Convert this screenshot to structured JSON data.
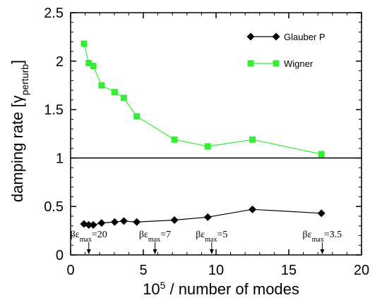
{
  "chart_data": {
    "type": "line",
    "xlabel_base": "10",
    "xlabel_sup": "5",
    "xlabel_rest": " / number of modes",
    "ylabel_main": "damping rate [γ",
    "ylabel_sub": "perturb",
    "ylabel_end": "]",
    "xlim": [
      0,
      20
    ],
    "ylim": [
      0,
      2.5
    ],
    "xticks": [
      0,
      5,
      10,
      15,
      20
    ],
    "xtick_labels": [
      "0",
      "5",
      "10",
      "15",
      "20"
    ],
    "yticks": [
      0,
      0.5,
      1,
      1.5,
      2,
      2.5
    ],
    "ytick_labels": [
      "0",
      "0.5",
      "1",
      "1.5",
      "2",
      "2.5"
    ],
    "reference_line_y": 1,
    "grid": false,
    "legend_position": "top-right",
    "series": [
      {
        "name": "Glauber P",
        "color": "#000000",
        "marker": "diamond",
        "x": [
          0.92,
          1.25,
          1.56,
          2.13,
          3.03,
          3.66,
          4.55,
          7.14,
          9.43,
          12.5,
          17.24
        ],
        "y": [
          0.32,
          0.31,
          0.31,
          0.33,
          0.34,
          0.35,
          0.34,
          0.36,
          0.39,
          0.47,
          0.43
        ]
      },
      {
        "name": "Wigner",
        "color": "#33ee33",
        "marker": "square",
        "x": [
          0.92,
          1.25,
          1.56,
          2.13,
          3.03,
          3.66,
          4.55,
          7.14,
          9.43,
          12.5,
          17.24
        ],
        "y": [
          2.18,
          1.98,
          1.95,
          1.75,
          1.68,
          1.62,
          1.43,
          1.19,
          1.12,
          1.19,
          1.04
        ]
      }
    ],
    "annotations": [
      {
        "sym": "βε",
        "sub": "max",
        "value": "=20",
        "x": 1.25
      },
      {
        "sym": "βε",
        "sub": "max",
        "value": "=7",
        "x": 5.8
      },
      {
        "sym": "βε",
        "sub": "max",
        "value": "=5",
        "x": 9.7
      },
      {
        "sym": "βε",
        "sub": "max",
        "value": "=3.5",
        "x": 17.3
      }
    ]
  }
}
